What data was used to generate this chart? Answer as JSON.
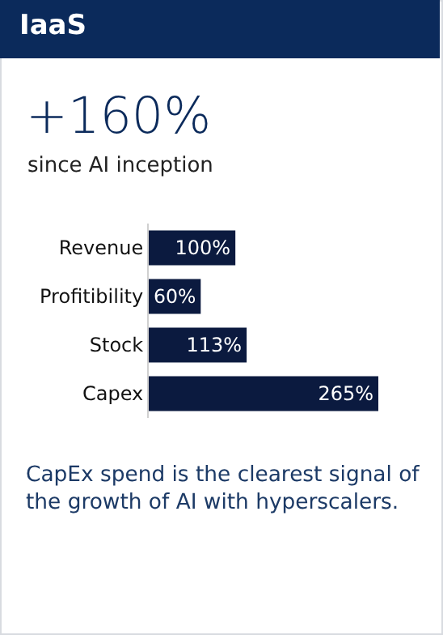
{
  "chart_data": {
    "type": "bar",
    "orientation": "horizontal",
    "title": "IaaS",
    "categories": [
      "Revenue",
      "Profitibility",
      "Stock",
      "Capex"
    ],
    "values": [
      100,
      60,
      113,
      265
    ],
    "value_labels": [
      "100%",
      "60%",
      "113%",
      "265%"
    ],
    "color": "#0b1a3f",
    "annotations": [
      "+160%",
      "since AI inception",
      "CapEx spend is the clearest signal of the growth of AI with hyperscalers."
    ]
  }
}
